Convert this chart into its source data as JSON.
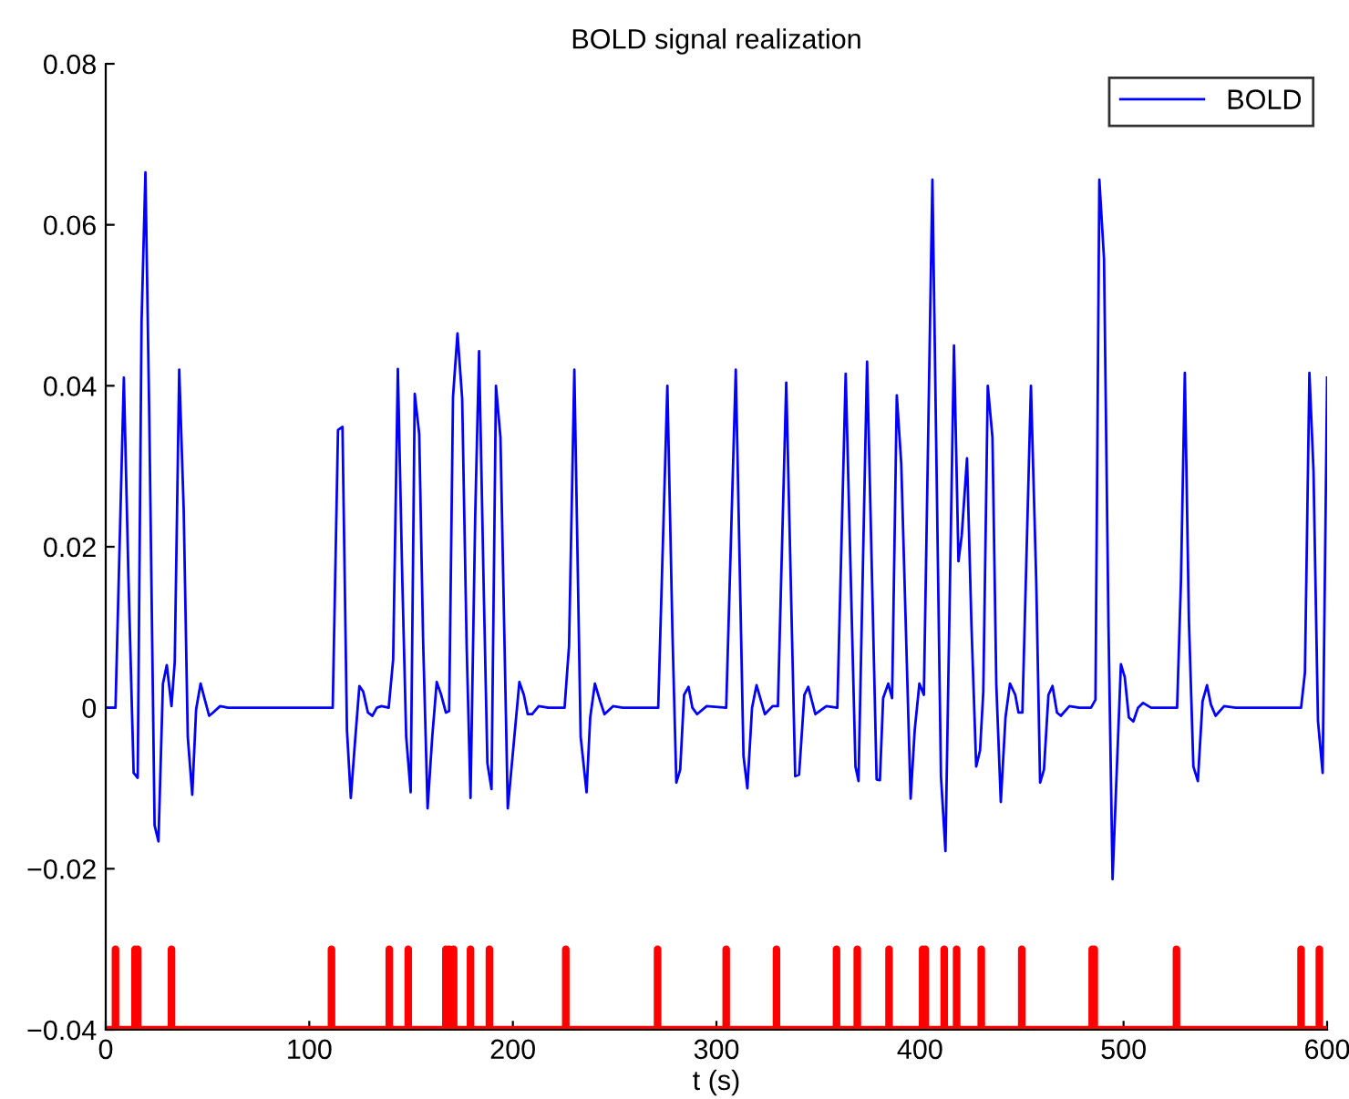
{
  "chart_data": {
    "type": "line",
    "title": "BOLD signal realization",
    "xlabel": "t (s)",
    "xlim": [
      0,
      600
    ],
    "xticks": [
      0,
      100,
      200,
      300,
      400,
      500,
      600
    ],
    "ylim": [
      -0.04,
      0.08
    ],
    "yticks": [
      {
        "value": -0.04,
        "label": "−0.04"
      },
      {
        "value": -0.02,
        "label": "−0.02"
      },
      0,
      0.02,
      0.04,
      0.06,
      0.08
    ],
    "grid": false,
    "legend": "top right",
    "marker": "none",
    "line_style": "solid",
    "series": [
      {
        "name": "BOLD",
        "color": "#0000ff",
        "x": [
          0,
          4.8,
          8.9,
          11.2,
          13.7,
          15.7,
          17.6,
          19.5,
          21.4,
          24,
          25.9,
          28.1,
          30,
          32.3,
          33.9,
          36.1,
          38.3,
          40.3,
          42.5,
          44.4,
          46.6,
          48.9,
          50.8,
          52.7,
          56.2,
          60.1,
          64.9,
          111.5,
          114.1,
          116.3,
          118.5,
          120.4,
          122.4,
          124.6,
          126.5,
          128.8,
          131,
          133.2,
          135.5,
          139,
          141.2,
          143.5,
          145.7,
          147.6,
          149.8,
          151.8,
          154,
          155.9,
          158.1,
          160.4,
          162.6,
          164.8,
          167.1,
          168.7,
          170.6,
          172.8,
          175.1,
          177.3,
          179.2,
          181.5,
          183.4,
          185.6,
          187.5,
          189.5,
          191.7,
          193.9,
          197.5,
          203.2,
          205.4,
          207.3,
          209.5,
          212.7,
          217.5,
          225.4,
          227.6,
          230.2,
          233.3,
          236.2,
          238,
          240.3,
          242.9,
          245,
          249.2,
          254,
          271.4,
          275.9,
          278.4,
          280.3,
          282.2,
          284.1,
          286.3,
          288.2,
          290.5,
          295.2,
          304.8,
          309.5,
          313.3,
          315.2,
          317.5,
          319.7,
          323.8,
          327.6,
          330.2,
          334.3,
          338.7,
          340.6,
          343.2,
          345.1,
          348.6,
          354,
          359.4,
          363.5,
          368.3,
          369.8,
          374,
          378.7,
          380.3,
          381.9,
          384.4,
          386.3,
          388.6,
          390.8,
          395.4,
          397.4,
          399.7,
          401.9,
          406.1,
          410.3,
          412.5,
          416.7,
          418.9,
          420.5,
          423.1,
          425.3,
          427.6,
          429.5,
          431.1,
          433.3,
          435.6,
          437.5,
          439.7,
          442,
          444.2,
          446.8,
          448.4,
          450.3,
          454.5,
          457.1,
          459,
          460.9,
          463.1,
          465.1,
          467.3,
          469.2,
          473.4,
          478.2,
          484,
          486.2,
          488.1,
          490.4,
          492.6,
          494.6,
          496.8,
          498.7,
          500.6,
          502.6,
          504.8,
          507.1,
          509.6,
          513.5,
          526.3,
          528.2,
          530.1,
          532.1,
          534.3,
          536.5,
          538.8,
          541,
          542.9,
          545.2,
          549.4,
          555.1,
          587.2,
          589.1,
          591.3,
          593.3,
          595.5,
          597.8,
          600
        ],
        "values": [
          0,
          0,
          0.041,
          0.0158,
          -0.0081,
          -0.0087,
          0.048,
          0.0665,
          0.036,
          -0.0146,
          -0.0166,
          0.003,
          0.0053,
          0.0002,
          0.0057,
          0.042,
          0.0246,
          -0.0036,
          -0.0108,
          -0.0002,
          0.003,
          0.0008,
          -0.001,
          -0.0006,
          0.0002,
          0,
          0,
          0,
          0.0345,
          0.0349,
          -0.0028,
          -0.0112,
          -0.0044,
          0.0027,
          0.002,
          -0.0006,
          -0.001,
          0,
          0.0002,
          0,
          0.006,
          0.0421,
          0.0158,
          -0.0036,
          -0.0105,
          0.039,
          0.034,
          0.0085,
          -0.0125,
          -0.0036,
          0.0032,
          0.0016,
          -0.0006,
          -0.0004,
          0.0386,
          0.0465,
          0.0384,
          0.0077,
          -0.0112,
          0.0238,
          0.0443,
          0.0158,
          -0.0069,
          -0.0101,
          0.04,
          0.0336,
          -0.0125,
          0.0032,
          0.0016,
          -0.0008,
          -0.0008,
          0.0002,
          0,
          0,
          0.0077,
          0.042,
          -0.0036,
          -0.0105,
          -0.0012,
          0.003,
          0.0008,
          -0.0008,
          0.0002,
          0,
          0,
          0.04,
          0.0093,
          -0.0093,
          -0.0077,
          0.0016,
          0.0026,
          0,
          -0.0008,
          0.0002,
          0,
          0.042,
          -0.006,
          -0.01,
          0,
          0.0028,
          -0.0008,
          0.0002,
          0.0002,
          0.0404,
          -0.0085,
          -0.0083,
          0.0016,
          0.0026,
          -0.0008,
          0.0002,
          0,
          0.0415,
          -0.0073,
          -0.0091,
          0.043,
          -0.0089,
          -0.009,
          0.0012,
          0.003,
          0.0012,
          0.0388,
          0.0303,
          -0.0113,
          -0.0028,
          0.003,
          0.0016,
          0.0656,
          -0.0085,
          -0.0178,
          0.045,
          0.0182,
          0.0214,
          0.031,
          0.0101,
          -0.0073,
          -0.0053,
          0.002,
          0.04,
          0.0336,
          0.0028,
          -0.0117,
          -0.0012,
          0.003,
          0.0016,
          -0.0006,
          -0.0006,
          0.04,
          0.0158,
          -0.0093,
          -0.0077,
          0.0016,
          0.0027,
          -0.0006,
          -0.001,
          0.0002,
          0,
          0,
          0.001,
          0.0656,
          0.0558,
          0.0101,
          -0.0213,
          -0.0069,
          0.0054,
          0.0038,
          -0.0012,
          -0.0017,
          0,
          0.0006,
          0,
          0,
          0.0158,
          0.0416,
          0.0109,
          -0.0073,
          -0.0091,
          0.0008,
          0.0028,
          0.0004,
          -0.001,
          0.0002,
          0,
          0,
          0.0044,
          0.0416,
          0.0295,
          -0.0016,
          -0.0081,
          0.041
        ]
      },
      {
        "color": "#ff0000",
        "x": [
          0,
          4.8,
          4.8,
          4.8,
          14.4,
          14.4,
          14.4,
          15.7,
          15.7,
          15.7,
          32.3,
          32.3,
          32.3,
          110.9,
          110.9,
          110.9,
          139.3,
          139.3,
          139.3,
          148.6,
          148.6,
          148.6,
          167.1,
          167.1,
          167.1,
          168.7,
          168.7,
          168.7,
          170.9,
          170.9,
          170.9,
          179.2,
          179.2,
          179.2,
          188.5,
          188.5,
          188.5,
          226,
          226,
          226,
          271.1,
          271.1,
          271.1,
          304.8,
          304.8,
          304.8,
          329.5,
          329.5,
          329.5,
          359,
          359,
          359,
          369.2,
          369.2,
          369.2,
          384.8,
          384.8,
          384.8,
          401.3,
          401.3,
          401.3,
          402.6,
          402.6,
          402.6,
          411.9,
          411.9,
          411.9,
          418,
          418,
          418,
          430.1,
          430.1,
          430.1,
          450,
          450,
          450,
          484.6,
          484.6,
          484.6,
          485.6,
          485.6,
          485.6,
          526,
          526,
          526,
          587.2,
          587.2,
          587.2,
          596.2,
          596.2,
          596.2,
          600
        ],
        "values": [
          -0.04,
          -0.04,
          -0.03,
          -0.04,
          -0.04,
          -0.03,
          -0.04,
          -0.04,
          -0.03,
          -0.04,
          -0.04,
          -0.03,
          -0.04,
          -0.04,
          -0.03,
          -0.04,
          -0.04,
          -0.03,
          -0.04,
          -0.04,
          -0.03,
          -0.04,
          -0.04,
          -0.03,
          -0.04,
          -0.04,
          -0.03,
          -0.04,
          -0.04,
          -0.03,
          -0.04,
          -0.04,
          -0.03,
          -0.04,
          -0.04,
          -0.03,
          -0.04,
          -0.04,
          -0.03,
          -0.04,
          -0.04,
          -0.03,
          -0.04,
          -0.04,
          -0.03,
          -0.04,
          -0.04,
          -0.03,
          -0.04,
          -0.04,
          -0.03,
          -0.04,
          -0.04,
          -0.03,
          -0.04,
          -0.04,
          -0.03,
          -0.04,
          -0.04,
          -0.03,
          -0.04,
          -0.04,
          -0.03,
          -0.04,
          -0.04,
          -0.03,
          -0.04,
          -0.04,
          -0.03,
          -0.04,
          -0.04,
          -0.03,
          -0.04,
          -0.04,
          -0.03,
          -0.04,
          -0.04,
          -0.03,
          -0.04,
          -0.04,
          -0.03,
          -0.04,
          -0.04,
          -0.03,
          -0.04,
          -0.04,
          -0.03,
          -0.04,
          -0.04,
          -0.03,
          -0.04,
          -0.04
        ]
      }
    ]
  }
}
